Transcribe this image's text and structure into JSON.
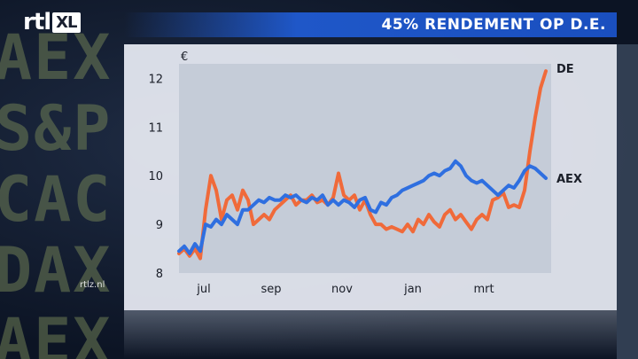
{
  "branding": {
    "logo_text": "rtl",
    "logo_badge": "XL",
    "watermark": "rtlz.nl"
  },
  "background": {
    "ticker_words": [
      "AEX",
      "S&P",
      "CAC",
      "DAX",
      "AEX"
    ]
  },
  "colors": {
    "title_bar": "#1f57c8",
    "panel": "#e8ecf4",
    "plot_area": "#c5ccd8",
    "de_line": "#f06a3a",
    "aex_line": "#2f6fe0"
  },
  "chart_data": {
    "type": "line",
    "title": "45% RENDEMENT OP D.E.",
    "unit_label": "€",
    "xlabel": "",
    "ylabel": "",
    "ylim": [
      8,
      12.3
    ],
    "xlim": [
      0,
      10.5
    ],
    "y_ticks": [
      8,
      9,
      10,
      11,
      12
    ],
    "x_ticks": [
      {
        "label": "jul",
        "x": 0.7
      },
      {
        "label": "sep",
        "x": 2.6
      },
      {
        "label": "nov",
        "x": 4.6
      },
      {
        "label": "jan",
        "x": 6.6
      },
      {
        "label": "mrt",
        "x": 8.6
      }
    ],
    "grid": false,
    "series": [
      {
        "name": "DE",
        "color": "#f06a3a",
        "points": [
          [
            0.0,
            8.4
          ],
          [
            0.15,
            8.5
          ],
          [
            0.3,
            8.35
          ],
          [
            0.45,
            8.5
          ],
          [
            0.6,
            8.3
          ],
          [
            0.75,
            9.3
          ],
          [
            0.9,
            10.0
          ],
          [
            1.05,
            9.7
          ],
          [
            1.2,
            9.1
          ],
          [
            1.35,
            9.5
          ],
          [
            1.5,
            9.6
          ],
          [
            1.65,
            9.3
          ],
          [
            1.8,
            9.7
          ],
          [
            1.95,
            9.5
          ],
          [
            2.1,
            9.0
          ],
          [
            2.25,
            9.1
          ],
          [
            2.4,
            9.2
          ],
          [
            2.55,
            9.1
          ],
          [
            2.7,
            9.3
          ],
          [
            2.85,
            9.4
          ],
          [
            3.0,
            9.5
          ],
          [
            3.15,
            9.6
          ],
          [
            3.3,
            9.4
          ],
          [
            3.45,
            9.5
          ],
          [
            3.6,
            9.5
          ],
          [
            3.75,
            9.6
          ],
          [
            3.9,
            9.45
          ],
          [
            4.05,
            9.5
          ],
          [
            4.2,
            9.4
          ],
          [
            4.35,
            9.55
          ],
          [
            4.5,
            10.05
          ],
          [
            4.65,
            9.6
          ],
          [
            4.8,
            9.5
          ],
          [
            4.95,
            9.6
          ],
          [
            5.1,
            9.3
          ],
          [
            5.25,
            9.5
          ],
          [
            5.4,
            9.2
          ],
          [
            5.55,
            9.0
          ],
          [
            5.7,
            9.0
          ],
          [
            5.85,
            8.9
          ],
          [
            6.0,
            8.95
          ],
          [
            6.15,
            8.9
          ],
          [
            6.3,
            8.85
          ],
          [
            6.45,
            9.0
          ],
          [
            6.6,
            8.85
          ],
          [
            6.75,
            9.1
          ],
          [
            6.9,
            9.0
          ],
          [
            7.05,
            9.2
          ],
          [
            7.2,
            9.05
          ],
          [
            7.35,
            8.95
          ],
          [
            7.5,
            9.2
          ],
          [
            7.65,
            9.3
          ],
          [
            7.8,
            9.1
          ],
          [
            7.95,
            9.2
          ],
          [
            8.1,
            9.05
          ],
          [
            8.25,
            8.9
          ],
          [
            8.4,
            9.1
          ],
          [
            8.55,
            9.2
          ],
          [
            8.7,
            9.1
          ],
          [
            8.85,
            9.5
          ],
          [
            9.0,
            9.55
          ],
          [
            9.15,
            9.65
          ],
          [
            9.3,
            9.35
          ],
          [
            9.45,
            9.4
          ],
          [
            9.6,
            9.35
          ],
          [
            9.75,
            9.7
          ],
          [
            9.9,
            10.5
          ],
          [
            10.05,
            11.2
          ],
          [
            10.2,
            11.8
          ],
          [
            10.35,
            12.15
          ]
        ]
      },
      {
        "name": "AEX",
        "color": "#2f6fe0",
        "points": [
          [
            0.0,
            8.45
          ],
          [
            0.15,
            8.55
          ],
          [
            0.3,
            8.4
          ],
          [
            0.45,
            8.6
          ],
          [
            0.6,
            8.45
          ],
          [
            0.75,
            9.0
          ],
          [
            0.9,
            8.95
          ],
          [
            1.05,
            9.1
          ],
          [
            1.2,
            9.0
          ],
          [
            1.35,
            9.2
          ],
          [
            1.5,
            9.1
          ],
          [
            1.65,
            9.0
          ],
          [
            1.8,
            9.3
          ],
          [
            1.95,
            9.3
          ],
          [
            2.1,
            9.4
          ],
          [
            2.25,
            9.5
          ],
          [
            2.4,
            9.45
          ],
          [
            2.55,
            9.55
          ],
          [
            2.7,
            9.5
          ],
          [
            2.85,
            9.5
          ],
          [
            3.0,
            9.6
          ],
          [
            3.15,
            9.55
          ],
          [
            3.3,
            9.6
          ],
          [
            3.45,
            9.5
          ],
          [
            3.6,
            9.45
          ],
          [
            3.75,
            9.55
          ],
          [
            3.9,
            9.5
          ],
          [
            4.05,
            9.6
          ],
          [
            4.2,
            9.4
          ],
          [
            4.35,
            9.5
          ],
          [
            4.5,
            9.4
          ],
          [
            4.65,
            9.5
          ],
          [
            4.8,
            9.45
          ],
          [
            4.95,
            9.35
          ],
          [
            5.1,
            9.5
          ],
          [
            5.25,
            9.55
          ],
          [
            5.4,
            9.3
          ],
          [
            5.55,
            9.25
          ],
          [
            5.7,
            9.45
          ],
          [
            5.85,
            9.4
          ],
          [
            6.0,
            9.55
          ],
          [
            6.15,
            9.6
          ],
          [
            6.3,
            9.7
          ],
          [
            6.45,
            9.75
          ],
          [
            6.6,
            9.8
          ],
          [
            6.75,
            9.85
          ],
          [
            6.9,
            9.9
          ],
          [
            7.05,
            10.0
          ],
          [
            7.2,
            10.05
          ],
          [
            7.35,
            10.0
          ],
          [
            7.5,
            10.1
          ],
          [
            7.65,
            10.15
          ],
          [
            7.8,
            10.3
          ],
          [
            7.95,
            10.2
          ],
          [
            8.1,
            10.0
          ],
          [
            8.25,
            9.9
          ],
          [
            8.4,
            9.85
          ],
          [
            8.55,
            9.9
          ],
          [
            8.7,
            9.8
          ],
          [
            8.85,
            9.7
          ],
          [
            9.0,
            9.6
          ],
          [
            9.15,
            9.7
          ],
          [
            9.3,
            9.8
          ],
          [
            9.45,
            9.75
          ],
          [
            9.6,
            9.9
          ],
          [
            9.75,
            10.1
          ],
          [
            9.9,
            10.2
          ],
          [
            10.05,
            10.15
          ],
          [
            10.2,
            10.05
          ],
          [
            10.35,
            9.95
          ]
        ]
      }
    ]
  }
}
